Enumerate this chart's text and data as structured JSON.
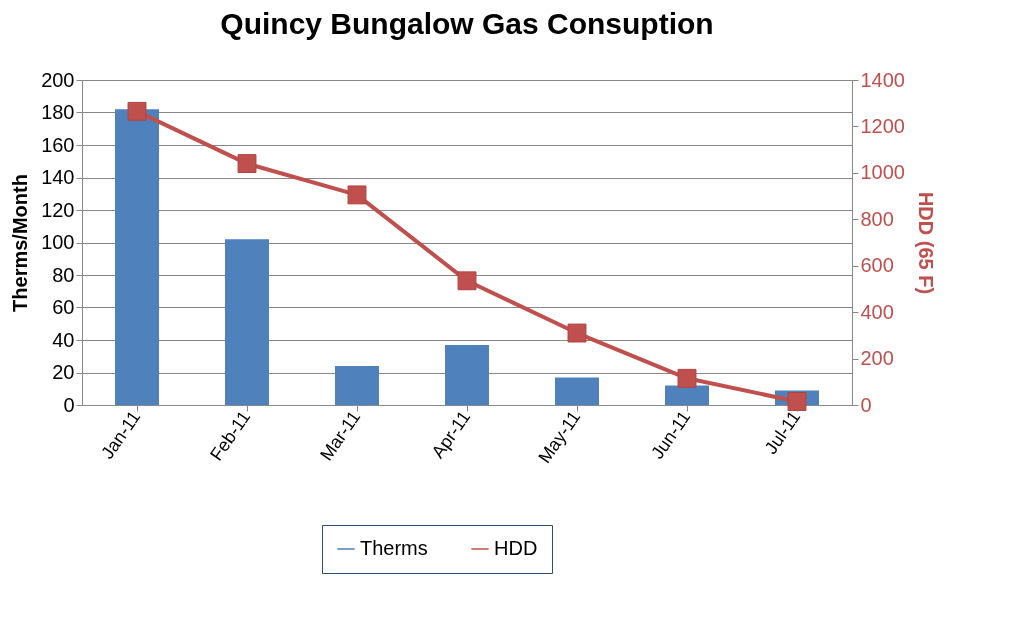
{
  "chart_data": {
    "type": "bar",
    "title": "Quincy Bungalow Gas Consuption",
    "categories": [
      "Jan-11",
      "Feb-11",
      "Mar-11",
      "Apr-11",
      "May-11",
      "Jun-11",
      "Jul-11"
    ],
    "ylabel": "Therms/Month",
    "y2label": "HDD (65 F)",
    "series": [
      {
        "name": "Therms",
        "color": "#4f81bd",
        "values": [
          182,
          102,
          24,
          37,
          17,
          12,
          9
        ]
      },
      {
        "name": "HDD",
        "type": "line",
        "axis": "y2",
        "color": "#c0504d",
        "marker": "square",
        "values": [
          1265,
          1040,
          905,
          535,
          310,
          115,
          15
        ]
      }
    ],
    "ylim": [
      0,
      200
    ],
    "yticks": [
      0,
      20,
      40,
      60,
      80,
      100,
      120,
      140,
      160,
      180,
      200
    ],
    "y2lim": [
      0,
      1400
    ],
    "y2ticks": [
      0,
      200,
      400,
      600,
      800,
      1000,
      1200,
      1400
    ],
    "grid": "y",
    "legend": "bottom"
  }
}
